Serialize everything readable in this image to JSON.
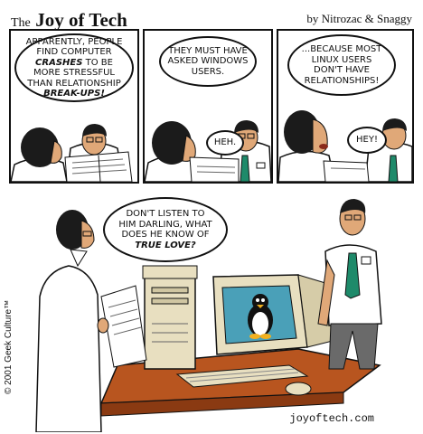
{
  "header": {
    "brand_prefix": "The",
    "brand_name": "Joy of Tech",
    "byline": "by Nitrozac & Snaggy"
  },
  "panel1": {
    "bubble": {
      "line1": "APPARENTLY, PEOPLE",
      "line2": "FIND COMPUTER",
      "emph1": "CRASHES",
      "line3_rest": " TO BE",
      "line4": "MORE STRESSFUL",
      "line5": "THAN RELATIONSHIP",
      "emph2": "BREAK-UPS!"
    }
  },
  "panel2": {
    "bubble_top": {
      "line1": "THEY MUST HAVE",
      "line2": "ASKED WINDOWS",
      "line3": "USERS."
    },
    "bubble_small": "HEH."
  },
  "panel3": {
    "bubble_top": {
      "line1": "...BECAUSE MOST",
      "line2": "LINUX USERS",
      "line3": "DON'T HAVE",
      "line4": "RELATIONSHIPS!"
    },
    "bubble_small": "HEY!"
  },
  "panel4": {
    "bubble": {
      "line1": "DON'T LISTEN TO",
      "line2": "HIM DARLING, WHAT",
      "line3": "DOES HE KNOW OF",
      "emph": "TRUE LOVE?"
    }
  },
  "footer": {
    "copyright": "© 2001 Geek Culture™",
    "site": "joyoftech.com"
  },
  "colors": {
    "tie": "#1e8a6a",
    "skin": "#e0a878",
    "hair": "#1b1b1b",
    "desk": "#b8551f",
    "beige": "#e8dfc0",
    "screen": "#4aa0b8",
    "pants": "#6a6a6a"
  }
}
